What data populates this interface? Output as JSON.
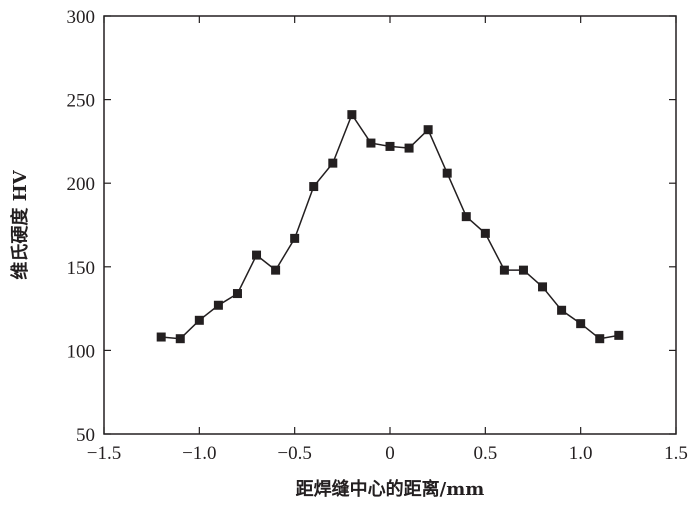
{
  "chart_data": {
    "type": "line",
    "title": "",
    "xlabel": "距焊缝中心的距离/mm",
    "ylabel": "维氏硬度 HV",
    "xlim": [
      -1.5,
      1.5
    ],
    "ylim": [
      50,
      300
    ],
    "xticks": [
      -1.5,
      -1.0,
      -0.5,
      0,
      0.5,
      1.0,
      1.5
    ],
    "xtick_labels": [
      "−1.5",
      "−1.0",
      "−0.5",
      "0",
      "0.5",
      "1.0",
      "1.5"
    ],
    "yticks": [
      50,
      100,
      150,
      200,
      250,
      300
    ],
    "ytick_labels": [
      "50",
      "100",
      "150",
      "200",
      "250",
      "300"
    ],
    "grid": false,
    "series": [
      {
        "marker": "square",
        "color": "#231f20",
        "x": [
          -1.2,
          -1.1,
          -1.0,
          -0.9,
          -0.8,
          -0.7,
          -0.6,
          -0.5,
          -0.4,
          -0.3,
          -0.2,
          -0.1,
          0.0,
          0.1,
          0.2,
          0.3,
          0.4,
          0.5,
          0.6,
          0.7,
          0.8,
          0.9,
          1.0,
          1.1,
          1.2
        ],
        "y": [
          108,
          107,
          118,
          127,
          134,
          157,
          148,
          167,
          198,
          212,
          241,
          224,
          222,
          221,
          232,
          206,
          180,
          170,
          148,
          148,
          138,
          124,
          116,
          107,
          109
        ]
      }
    ]
  }
}
